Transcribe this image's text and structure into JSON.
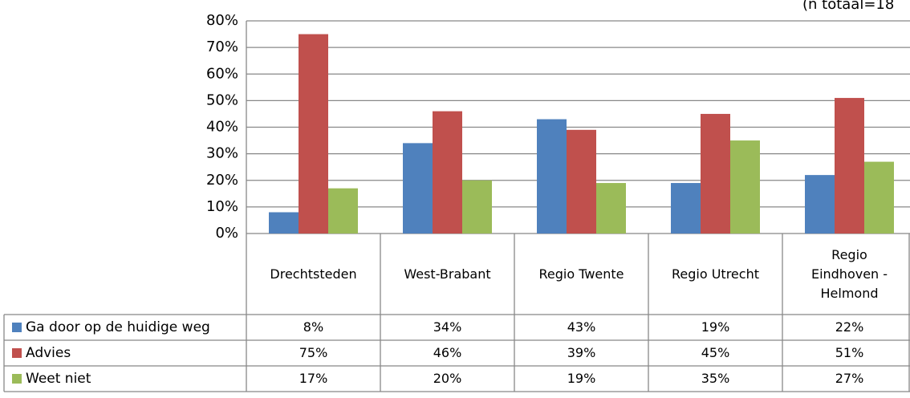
{
  "chart_data": {
    "type": "bar",
    "annotation": "(n totaal=18",
    "categories": [
      "Drechtsteden",
      "West-Brabant",
      "Regio Twente",
      "Regio Utrecht",
      "Regio Eindhoven - Helmond"
    ],
    "series": [
      {
        "name": "Ga door op de huidige weg",
        "color": "#4f81bd",
        "values": [
          8,
          34,
          43,
          19,
          22
        ],
        "value_labels": [
          "8%",
          "34%",
          "43%",
          "19%",
          "22%"
        ]
      },
      {
        "name": "Advies",
        "color": "#c0504d",
        "values": [
          75,
          46,
          39,
          45,
          51
        ],
        "value_labels": [
          "75%",
          "46%",
          "39%",
          "45%",
          "51%"
        ]
      },
      {
        "name": "Weet niet",
        "color": "#9bbb59",
        "values": [
          17,
          20,
          19,
          35,
          27
        ],
        "value_labels": [
          "17%",
          "20%",
          "19%",
          "35%",
          "27%"
        ]
      }
    ],
    "ylim": [
      0,
      80
    ],
    "yticks": [
      {
        "value": 0,
        "label": "0%"
      },
      {
        "value": 10,
        "label": "10%"
      },
      {
        "value": 20,
        "label": "20%"
      },
      {
        "value": 30,
        "label": "30%"
      },
      {
        "value": 40,
        "label": "40%"
      },
      {
        "value": 50,
        "label": "50%"
      },
      {
        "value": 60,
        "label": "60%"
      },
      {
        "value": 70,
        "label": "70%"
      },
      {
        "value": 80,
        "label": "80%"
      }
    ],
    "grid": true,
    "legend": "table"
  }
}
